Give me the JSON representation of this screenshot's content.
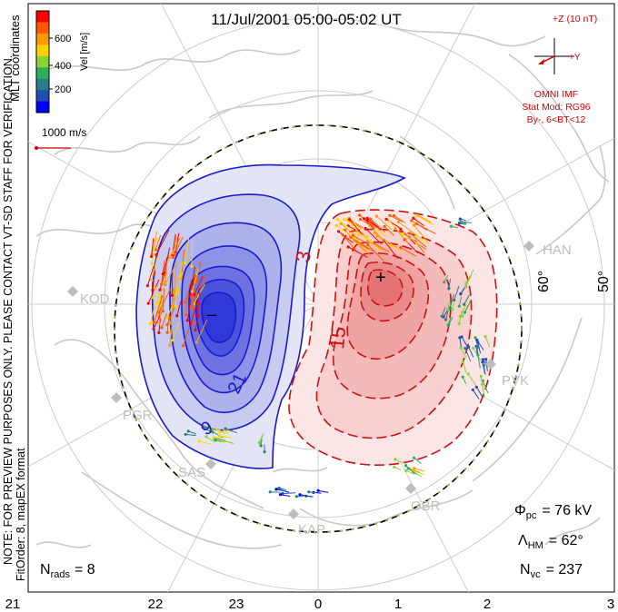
{
  "title": "11/Jul/2001 05:00-05:02 UT",
  "mlt_label": "MLT coordinates",
  "color_scale": {
    "label": "Vel [m/s]",
    "ticks": [
      "600",
      "400",
      "200"
    ],
    "colors": [
      "#ff0000",
      "#ff5a00",
      "#ff9b00",
      "#ffd200",
      "#8ed23a",
      "#2fae5a",
      "#2a7f87",
      "#1f4fb3",
      "#0000ff"
    ]
  },
  "reference_vector": "1000 m/s",
  "imf": {
    "z_label": "+Z (10 nT)",
    "y_label": "+Y",
    "source": "OMNI IMF",
    "model": "Stat Mod: RG96",
    "condition": "By-, 6<BT<12",
    "color": "#d40000"
  },
  "note": "NOTE: FOR PREVIEW PURPOSES ONLY. PLEASE CONTACT VT-SD STAFF FOR VERIFICATION.",
  "fit": "FitOrder: 8, mapEX format",
  "stations": [
    "KOD",
    "PGR",
    "SAS",
    "KAP",
    "GBR",
    "PYK",
    "HAN"
  ],
  "lat_labels": [
    "60°",
    "50°"
  ],
  "mlt_ticks": [
    "21",
    "22",
    "23",
    "0",
    "1",
    "2",
    "3"
  ],
  "contours": {
    "negative_labels": [
      "21",
      "9"
    ],
    "positive_labels": [
      "3",
      "15"
    ],
    "min_marker": "–",
    "max_marker": "+",
    "negative_color": "#1a1ad0",
    "positive_color": "#cc1111"
  },
  "stats": {
    "n_rads_label": "N",
    "n_rads_sub": "rads",
    "n_rads_value": "= 8",
    "phi_label": "Φ",
    "phi_sub": "pc",
    "phi_value": "= 76 kV",
    "lambda_label": "Λ",
    "lambda_sub": "HM",
    "lambda_value": "= 62°",
    "nvc_label": "N",
    "nvc_sub": "vc",
    "nvc_value": "= 237"
  }
}
